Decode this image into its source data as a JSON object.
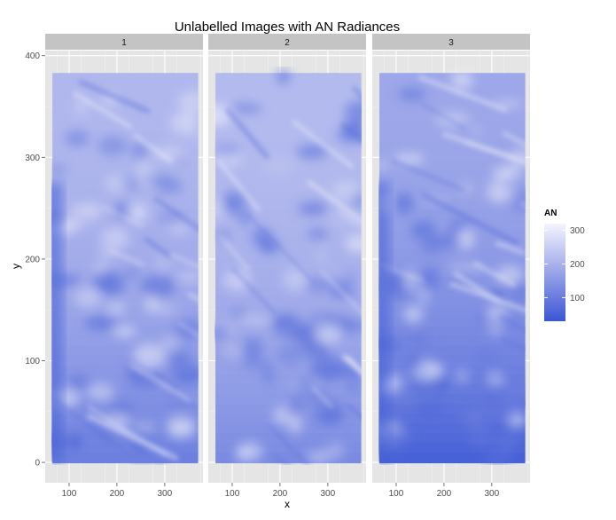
{
  "chart_data": {
    "type": "heatmap",
    "title": "Unlabelled Images with AN Radiances",
    "xlabel": "x",
    "ylabel": "y",
    "facet_labels": [
      "1",
      "2",
      "3"
    ],
    "xlim": [
      50,
      380
    ],
    "ylim": [
      -20,
      405
    ],
    "x_ticks": [
      100,
      200,
      300
    ],
    "y_ticks": [
      0,
      100,
      200,
      300,
      400
    ],
    "data_extent": {
      "x": [
        65,
        370
      ],
      "y": [
        0,
        383
      ]
    },
    "grid": true,
    "legend": {
      "title": "AN",
      "position": "right",
      "ticks": [
        100,
        200,
        300
      ],
      "range": [
        30,
        320
      ],
      "low_color": "#3a56d4",
      "high_color": "#f4f5fd"
    },
    "colors": {
      "panel_background": "#e5e5e5",
      "strip_background": "#c4c4c4",
      "grid_major": "#ffffff",
      "grid_minor": "#f1f1f1"
    }
  }
}
